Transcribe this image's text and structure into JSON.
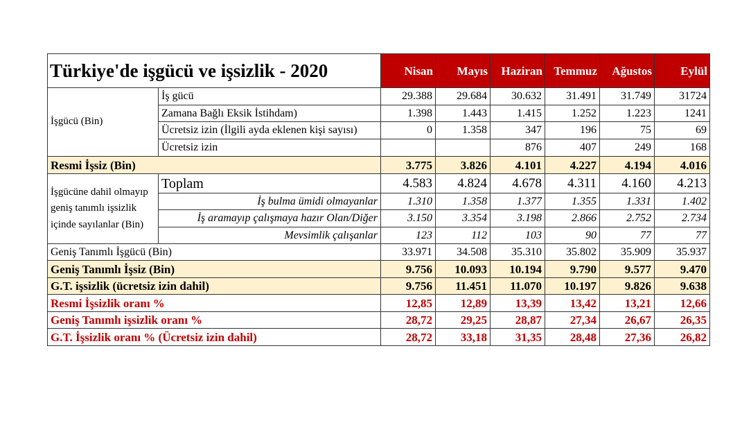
{
  "title": "Türkiye'de işgücü ve işsizlik - 2020",
  "months": [
    "Nisan",
    "Mayıs",
    "Haziran",
    "Temmuz",
    "Ağustos",
    "Eylül"
  ],
  "colors": {
    "header_bg": "#c00000",
    "highlight_bg": "#fdf1cf",
    "rate_text": "#c00000"
  },
  "rows": [
    {
      "group": "İşgücü (Bin)",
      "group_span": 4,
      "label": "İş gücü",
      "values": [
        "29.388",
        "29.684",
        "30.632",
        "31.491",
        "31.749",
        "31724"
      ],
      "style": ""
    },
    {
      "label": "Zamana Bağlı Eksik İstihdam)",
      "values": [
        "1.398",
        "1.443",
        "1.415",
        "1.252",
        "1.223",
        "1241"
      ],
      "style": ""
    },
    {
      "label": "Ücretsiz izin (İlgili ayda eklenen kişi sayısı)",
      "values": [
        "0",
        "1.358",
        "347",
        "196",
        "75",
        "69"
      ],
      "style": ""
    },
    {
      "label": "Ücretsiz izin",
      "values": [
        "",
        "",
        "876",
        "407",
        "249",
        "168"
      ],
      "style": ""
    },
    {
      "label": "Resmi İşsiz (Bin)",
      "full": true,
      "values": [
        "3.775",
        "3.826",
        "4.101",
        "4.227",
        "4.194",
        "4.016"
      ],
      "style": "beige bold"
    },
    {
      "group": "İşgücüne dahil olmayıp geniş tanımlı işsizlik içinde sayılanlar (Bin)",
      "group_span": 4,
      "label": "Toplam",
      "values": [
        "4.583",
        "4.824",
        "4.678",
        "4.311",
        "4.160",
        "4.213"
      ],
      "style": "big"
    },
    {
      "label": "İş bulma ümidi olmayanlar",
      "values": [
        "1.310",
        "1.358",
        "1.377",
        "1.355",
        "1.331",
        "1.402"
      ],
      "style": "italic dot"
    },
    {
      "label": "İş aramayıp çalışmaya hazır Olan/Diğer",
      "values": [
        "3.150",
        "3.354",
        "3.198",
        "2.866",
        "2.752",
        "2.734"
      ],
      "style": "italic dot"
    },
    {
      "label": "Mevsimlik çalışanlar",
      "values": [
        "123",
        "112",
        "103",
        "90",
        "77",
        "77"
      ],
      "style": "italic"
    },
    {
      "label": "Geniş Tanımlı İşgücü (Bin)",
      "full": true,
      "values": [
        "33.971",
        "34.508",
        "35.310",
        "35.802",
        "35.909",
        "35.937"
      ],
      "style": ""
    },
    {
      "label": "Geniş Tanımlı İşsiz (Bin)",
      "full": true,
      "values": [
        "9.756",
        "10.093",
        "10.194",
        "9.790",
        "9.577",
        "9.470"
      ],
      "style": "beige bold"
    },
    {
      "label": "G.T. işsizlik (ücretsiz izin dahil)",
      "full": true,
      "values": [
        "9.756",
        "11.451",
        "11.070",
        "10.197",
        "9.826",
        "9.638"
      ],
      "style": "beige bold"
    },
    {
      "label": "Resmi İşsizlik oranı %",
      "full": true,
      "values": [
        "12,85",
        "12,89",
        "13,39",
        "13,42",
        "13,21",
        "12,66"
      ],
      "style": "red"
    },
    {
      "label": "Geniş Tanımlı işsizlik oranı %",
      "full": true,
      "values": [
        "28,72",
        "29,25",
        "28,87",
        "27,34",
        "26,67",
        "26,35"
      ],
      "style": "red"
    },
    {
      "label": "G.T. İşsizlik oranı % (Ücretsiz izin dahil)",
      "full": true,
      "values": [
        "28,72",
        "33,18",
        "31,35",
        "28,48",
        "27,36",
        "26,82"
      ],
      "style": "red"
    }
  ]
}
